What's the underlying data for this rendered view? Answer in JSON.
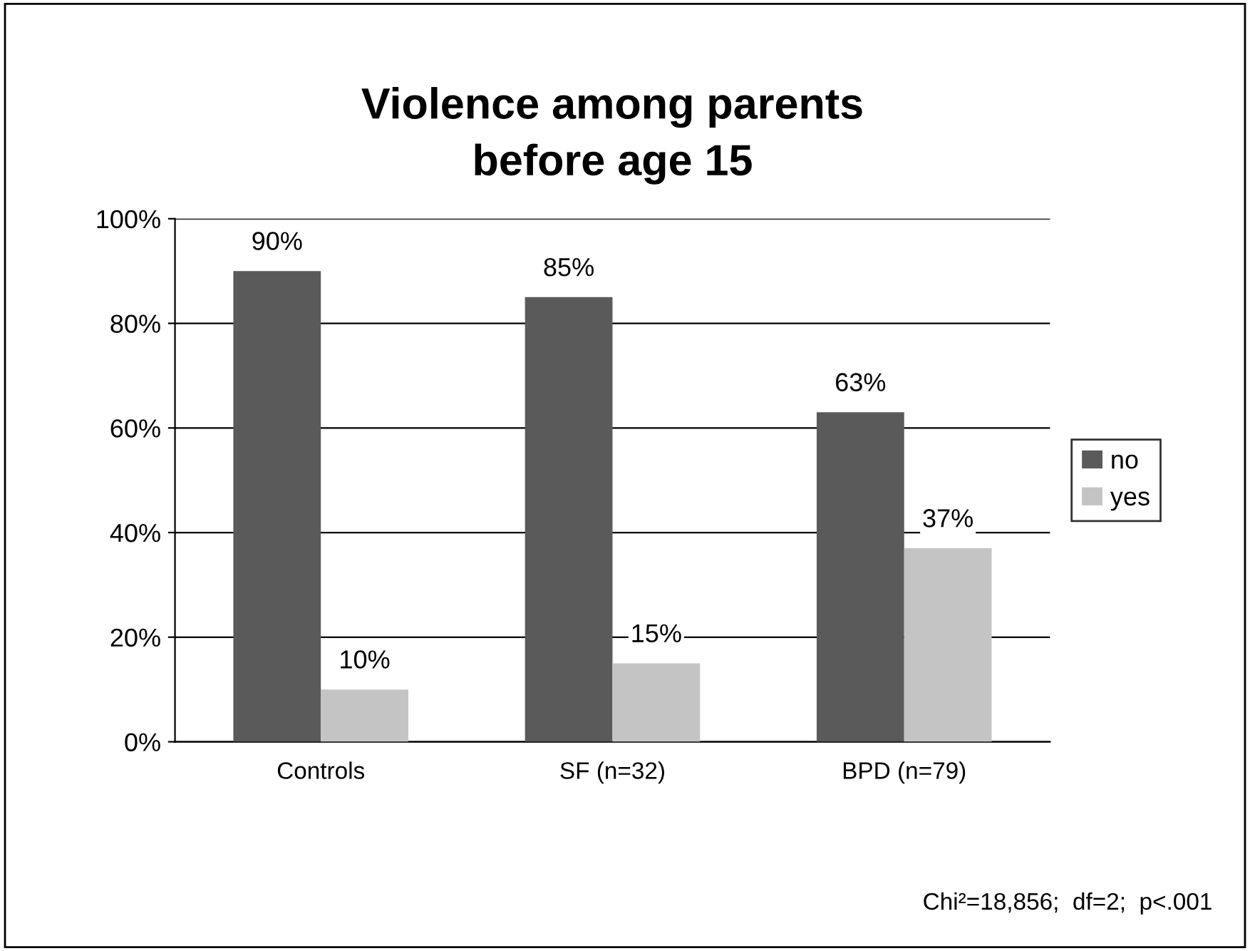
{
  "chart_data": {
    "type": "bar",
    "title": "Violence among parents\nbefore age 15",
    "categories": [
      "Controls",
      "SF (n=32)",
      "BPD (n=79)"
    ],
    "series": [
      {
        "name": "no",
        "color": "#5a5a5a",
        "values": [
          90,
          85,
          63
        ],
        "value_labels": [
          "90%",
          "85%",
          "63%"
        ]
      },
      {
        "name": "yes",
        "color": "#c4c4c4",
        "values": [
          10,
          15,
          37
        ],
        "value_labels": [
          "10%",
          "15%",
          "37%"
        ]
      }
    ],
    "ylim": [
      0,
      100
    ],
    "yticks": [
      {
        "value": 0,
        "label": "0%"
      },
      {
        "value": 20,
        "label": "20%"
      },
      {
        "value": 40,
        "label": "40%"
      },
      {
        "value": 60,
        "label": "60%"
      },
      {
        "value": 80,
        "label": "80%"
      },
      {
        "value": 100,
        "label": "100%"
      }
    ],
    "grid": "y",
    "legend": "right",
    "annotations": [
      "Chi²=18,856;  df=2;  p<.001"
    ]
  }
}
